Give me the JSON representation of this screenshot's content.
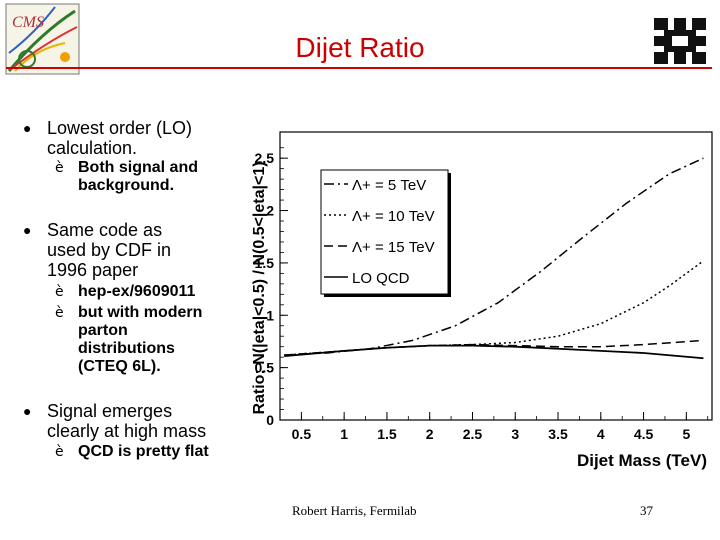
{
  "slide": {
    "title": "Dijet Ratio",
    "logo_left_text": "CMS",
    "bullets": [
      {
        "text_lines": [
          "Lowest order (LO)",
          "calculation."
        ],
        "subs": [
          {
            "lines": [
              "Both signal and",
              "background."
            ]
          }
        ]
      },
      {
        "text_lines": [
          "Same code as",
          "used by CDF in",
          "1996 paper"
        ],
        "subs": [
          {
            "lines": [
              "hep-ex/9609011"
            ]
          },
          {
            "lines": [
              "but with modern",
              "parton",
              "distributions",
              "(CTEQ 6L)."
            ]
          }
        ]
      },
      {
        "text_lines": [
          "Signal emerges",
          "clearly at high mass"
        ],
        "subs": [
          {
            "lines": [
              "QCD is pretty flat"
            ]
          }
        ]
      }
    ],
    "footer": "Robert Harris, Fermilab",
    "page_number": "37",
    "bullet_glyph": "●",
    "sub_glyph": "è"
  },
  "chart_data": {
    "type": "line",
    "xlabel": "Dijet Mass (TeV)",
    "ylabel": "Ratio: N(|eta|<0.5) / N(0.5<|eta|<1)",
    "xlim": [
      0.25,
      5.3
    ],
    "ylim": [
      0,
      2.75
    ],
    "x_ticks": [
      "0.5",
      "1",
      "1.5",
      "2",
      "2.5",
      "3",
      "3.5",
      "4",
      "4.5",
      "5"
    ],
    "y_ticks": [
      "0",
      "0.5",
      "1",
      "1.5",
      "2",
      "2.5"
    ],
    "legend_position": "top-left",
    "series": [
      {
        "name": "Λ+ = 5 TeV",
        "style": "dashdot",
        "x": [
          0.3,
          0.8,
          1.3,
          1.8,
          2.3,
          2.8,
          3.3,
          3.8,
          4.3,
          4.8,
          5.2
        ],
        "y": [
          0.62,
          0.64,
          0.68,
          0.76,
          0.9,
          1.12,
          1.42,
          1.75,
          2.07,
          2.35,
          2.5
        ]
      },
      {
        "name": "Λ+ = 10 TeV",
        "style": "dotted",
        "x": [
          0.3,
          1.0,
          1.5,
          2.0,
          2.5,
          3.0,
          3.5,
          4.0,
          4.5,
          4.8,
          5.2
        ],
        "y": [
          0.62,
          0.66,
          0.69,
          0.71,
          0.72,
          0.74,
          0.8,
          0.92,
          1.12,
          1.28,
          1.52
        ]
      },
      {
        "name": "Λ+ = 15 TeV",
        "style": "dashed",
        "x": [
          0.3,
          1.0,
          1.5,
          2.0,
          2.5,
          3.0,
          3.5,
          4.0,
          4.5,
          5.2
        ],
        "y": [
          0.62,
          0.66,
          0.69,
          0.71,
          0.72,
          0.71,
          0.7,
          0.7,
          0.72,
          0.76
        ]
      },
      {
        "name": "LO  QCD",
        "style": "solid",
        "x": [
          0.3,
          1.0,
          1.5,
          2.0,
          2.5,
          3.0,
          3.5,
          4.0,
          4.5,
          5.2
        ],
        "y": [
          0.61,
          0.66,
          0.69,
          0.71,
          0.71,
          0.7,
          0.68,
          0.66,
          0.64,
          0.59
        ]
      }
    ]
  }
}
